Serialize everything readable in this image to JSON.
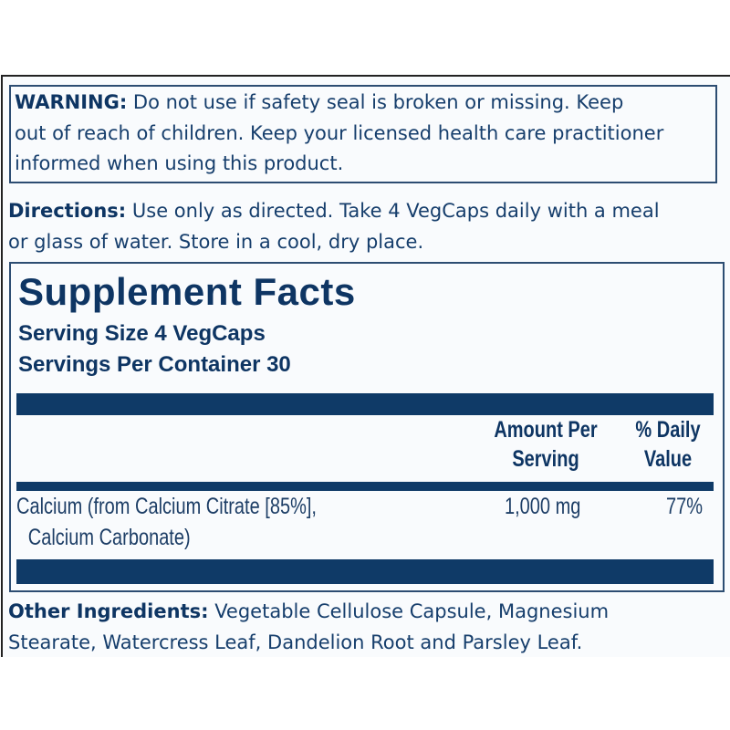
{
  "warning": {
    "label": "WARNING:",
    "lines": [
      " Do not use if safety seal is broken or missing. Keep",
      "out of reach of children. Keep your licensed health care practitioner",
      "informed when using this product."
    ]
  },
  "directions": {
    "label": "Directions:",
    "lines": [
      " Use only as directed. Take 4 VegCaps daily with a meal",
      "or glass of water. Store in a cool, dry place."
    ]
  },
  "facts": {
    "title": "Supplement Facts",
    "serving_size": "Serving Size 4 VegCaps",
    "servings_per_container": "Servings Per Container 30",
    "headers": {
      "amount_1": "Amount Per",
      "amount_2": "Serving",
      "dv_1": "% Daily",
      "dv_2": "Value"
    },
    "rows": [
      {
        "name_1": "Calcium (from Calcium Citrate [85%],",
        "name_2": "Calcium Carbonate)",
        "amount": "1,000 mg",
        "dv": "77%"
      }
    ]
  },
  "other": {
    "label": "Other Ingredients:",
    "lines": [
      " Vegetable Cellulose Capsule, Magnesium",
      "Stearate, Watercress Leaf, Dandelion Root and Parsley Leaf."
    ]
  },
  "colors": {
    "navy": "#0f3a67"
  }
}
